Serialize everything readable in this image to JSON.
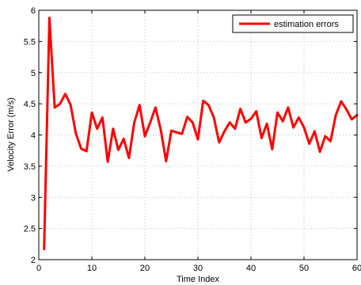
{
  "colors": {
    "series": "#ff0000",
    "grid": "#b0b0b0",
    "axis": "#000000",
    "background": "#ffffff"
  },
  "chart_data": {
    "type": "line",
    "title": "",
    "xlabel": "Time Index",
    "ylabel": "Velocity Error (m/s)",
    "xlim": [
      0,
      60
    ],
    "ylim": [
      2,
      6
    ],
    "xticks": [
      0,
      10,
      20,
      30,
      40,
      50,
      60
    ],
    "xtick_labels": [
      "0",
      "10",
      "20",
      "30",
      "40",
      "50",
      "60"
    ],
    "yticks": [
      2,
      2.5,
      3,
      3.5,
      4,
      4.5,
      5,
      5.5,
      6
    ],
    "ytick_labels": [
      "2",
      "2.5",
      "3",
      "3.5",
      "4",
      "4.5",
      "5",
      "5.5",
      "6"
    ],
    "grid": true,
    "legend_position": "top-right",
    "series": [
      {
        "name": "estimation errors",
        "x": [
          1,
          2,
          3,
          4,
          5,
          6,
          7,
          8,
          9,
          10,
          11,
          12,
          13,
          14,
          15,
          16,
          17,
          18,
          19,
          20,
          21,
          22,
          23,
          24,
          25,
          26,
          27,
          28,
          29,
          30,
          31,
          32,
          33,
          34,
          35,
          36,
          37,
          38,
          39,
          40,
          41,
          42,
          43,
          44,
          45,
          46,
          47,
          48,
          49,
          50,
          51,
          52,
          53,
          54,
          55,
          56,
          57,
          58,
          59,
          60
        ],
        "values": [
          2.17,
          5.88,
          4.44,
          4.5,
          4.66,
          4.48,
          4.02,
          3.78,
          3.74,
          4.36,
          4.1,
          4.28,
          3.57,
          4.1,
          3.76,
          3.94,
          3.63,
          4.2,
          4.48,
          3.98,
          4.2,
          4.44,
          4.08,
          3.58,
          4.07,
          4.04,
          4.02,
          4.29,
          4.2,
          3.93,
          4.55,
          4.48,
          4.28,
          3.88,
          4.06,
          4.2,
          4.1,
          4.42,
          4.2,
          4.26,
          4.38,
          3.95,
          4.18,
          3.77,
          4.36,
          4.22,
          4.44,
          4.12,
          4.28,
          4.12,
          3.86,
          4.06,
          3.73,
          3.98,
          3.9,
          4.32,
          4.54,
          4.41,
          4.25,
          4.32
        ]
      }
    ]
  }
}
